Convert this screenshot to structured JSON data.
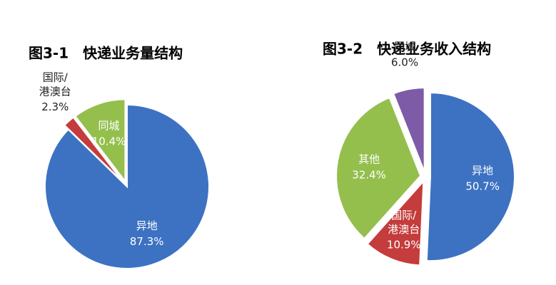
{
  "chart_data": [
    {
      "type": "pie",
      "title": "图3-1　快递业务量结构",
      "categories": [
        "异地",
        "国际/港澳台",
        "同城"
      ],
      "values": [
        87.3,
        2.3,
        10.4
      ],
      "value_labels": [
        "87.3%",
        "2.3%",
        "10.4%"
      ],
      "colors": [
        "#3d72c2",
        "#c43c3b",
        "#94bf4d"
      ]
    },
    {
      "type": "pie",
      "title": "图3-2　快递业务收入结构",
      "categories": [
        "异地",
        "国际/港澳台",
        "其他",
        "同城"
      ],
      "values": [
        50.7,
        10.9,
        32.4,
        6.0
      ],
      "value_labels": [
        "50.7%",
        "10.9%",
        "32.4%",
        "6.0%"
      ],
      "colors": [
        "#3d72c2",
        "#c43c3b",
        "#94bf4d",
        "#7d5ba6"
      ]
    }
  ]
}
